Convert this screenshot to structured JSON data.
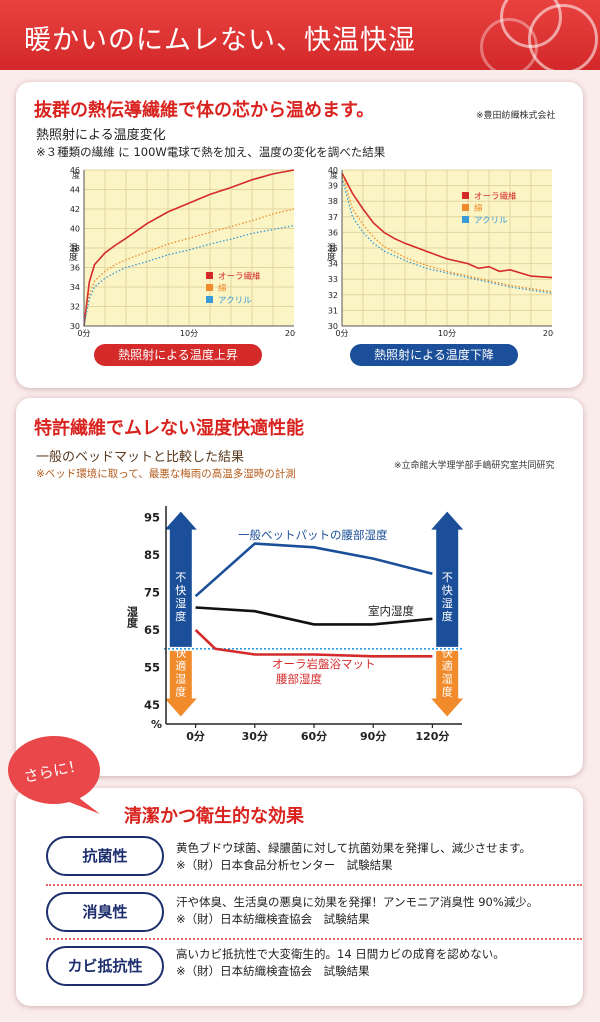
{
  "header": {
    "title": "暖かいのにムレない、快温快湿"
  },
  "section1": {
    "heading": "抜群の熱伝導繊維で体の芯から温めます。",
    "source_note": "※豊田紡織株式会社",
    "subtitle": "熱照射による温度変化",
    "description": "※３種類の繊維 に 100W電球で熱を加え、温度の変化を調べた結果",
    "left_caption": "熱照射による温度上昇",
    "right_caption": "熱照射による温度下降"
  },
  "section2": {
    "heading": "特許繊維でムレない湿度快適性能",
    "subtitle": "一般のベッドマットと比較した結果",
    "source_note": "※立命館大学理学部手嶋研究室共同研究",
    "description": "※ベッド環境に取って、最悪な梅雨の高温多湿時の計測",
    "arrow_up_label": "不快湿度",
    "arrow_down_label": "快適湿度"
  },
  "section3": {
    "bubble_text": "さらに！",
    "heading": "清潔かつ衛生的な効果",
    "items": [
      {
        "badge": "抗菌性",
        "text": "黄色ブドウ球菌、緑膿菌に対して抗菌効果を発揮し、減少させます。",
        "note": "※（財）日本食品分析センター　試験結果"
      },
      {
        "badge": "消臭性",
        "text": "汗や体臭、生活臭の悪臭に効果を発揮！アンモニア消臭性 90%減少。",
        "note": "※（財）日本紡織検査協会　試験結果"
      },
      {
        "badge": "カビ抵抗性",
        "text": "高いカビ抵抗性で大変衛生的。14 日間カビの成育を認めない。",
        "note": "※（財）日本紡織検査協会　試験結果"
      }
    ]
  },
  "colors": {
    "header_red": "#d8282a",
    "aura": "#d42a2a",
    "cotton": "#f08a2a",
    "acrylic": "#3a9ad8",
    "navy": "#1b4f99",
    "ideal": "#2a9ae0"
  },
  "chart_data": [
    {
      "type": "line",
      "title": "熱照射による温度上昇",
      "xlabel": "",
      "ylabel": "温度",
      "xlim": [
        0,
        20
      ],
      "ylim": [
        30,
        46
      ],
      "y_unit": "度",
      "x_ticks": [
        "0分",
        "10分",
        "20分"
      ],
      "y_ticks": [
        30,
        32,
        34,
        36,
        38,
        40,
        42,
        44,
        46
      ],
      "legend": [
        "オーラ繊維",
        "綿",
        "アクリル"
      ],
      "legend_position": "bottom-right",
      "series": [
        {
          "name": "オーラ繊維",
          "style": "solid",
          "x": [
            0,
            0.5,
            1,
            2,
            3,
            4,
            6,
            8,
            10,
            12,
            14,
            16,
            18,
            20
          ],
          "values": [
            30,
            34.5,
            36.3,
            37.5,
            38.3,
            39.0,
            40.5,
            41.7,
            42.6,
            43.5,
            44.2,
            45.0,
            45.6,
            46.0
          ]
        },
        {
          "name": "綿",
          "style": "dotted",
          "x": [
            0,
            0.5,
            1,
            2,
            3,
            4,
            6,
            8,
            10,
            12,
            14,
            16,
            18,
            20
          ],
          "values": [
            30,
            33.2,
            34.6,
            35.6,
            36.3,
            36.8,
            37.6,
            38.4,
            39.0,
            39.6,
            40.2,
            40.8,
            41.5,
            42.0
          ]
        },
        {
          "name": "アクリル",
          "style": "dotted",
          "x": [
            0,
            0.5,
            1,
            2,
            3,
            4,
            6,
            8,
            10,
            12,
            14,
            16,
            18,
            20
          ],
          "values": [
            30,
            32.8,
            34.0,
            34.9,
            35.5,
            36.0,
            36.6,
            37.3,
            37.8,
            38.4,
            38.9,
            39.5,
            39.9,
            40.3
          ]
        }
      ]
    },
    {
      "type": "line",
      "title": "熱照射による温度下降",
      "xlabel": "",
      "ylabel": "温度",
      "xlim": [
        0,
        20
      ],
      "ylim": [
        30,
        40
      ],
      "y_unit": "度",
      "x_ticks": [
        "0分",
        "10分",
        "20分"
      ],
      "y_ticks": [
        30,
        31,
        32,
        33,
        34,
        35,
        36,
        37,
        38,
        39,
        40
      ],
      "legend": [
        "オーラ繊維",
        "綿",
        "アクリル"
      ],
      "legend_position": "top-right",
      "series": [
        {
          "name": "オーラ繊維",
          "style": "solid",
          "x": [
            0,
            1,
            2,
            3,
            4,
            5,
            6,
            8,
            10,
            12,
            13,
            14,
            15,
            16,
            18,
            20
          ],
          "values": [
            39.8,
            38.5,
            37.5,
            36.6,
            36.0,
            35.6,
            35.3,
            34.8,
            34.3,
            34.0,
            33.7,
            33.8,
            33.5,
            33.6,
            33.2,
            33.1
          ]
        },
        {
          "name": "綿",
          "style": "dotted",
          "x": [
            0,
            1,
            2,
            3,
            4,
            6,
            8,
            10,
            12,
            14,
            16,
            18,
            20
          ],
          "values": [
            39.8,
            37.5,
            36.5,
            35.7,
            35.1,
            34.4,
            33.9,
            33.5,
            33.2,
            32.9,
            32.6,
            32.4,
            32.2
          ]
        },
        {
          "name": "アクリル",
          "style": "dotted",
          "x": [
            0,
            1,
            2,
            3,
            4,
            6,
            8,
            10,
            12,
            14,
            16,
            18,
            20
          ],
          "values": [
            39.5,
            37.0,
            36.0,
            35.3,
            34.8,
            34.2,
            33.7,
            33.4,
            33.1,
            32.8,
            32.5,
            32.3,
            32.1
          ]
        }
      ]
    },
    {
      "type": "line",
      "title": "",
      "xlabel": "",
      "ylabel": "湿度",
      "xlim": [
        -15,
        135
      ],
      "ylim": [
        40,
        98
      ],
      "y_unit": "%",
      "x_ticks": [
        "0分",
        "30分",
        "60分",
        "90分",
        "120分"
      ],
      "y_ticks": [
        45,
        55,
        65,
        75,
        85,
        95
      ],
      "threshold": 60,
      "series": [
        {
          "name": "一般ベットパットの腰部湿度",
          "x": [
            0,
            30,
            60,
            90,
            120
          ],
          "values": [
            74,
            88,
            87,
            84,
            80
          ]
        },
        {
          "name": "室内湿度",
          "x": [
            0,
            30,
            60,
            90,
            120
          ],
          "values": [
            71,
            70,
            66.5,
            66.5,
            68
          ]
        },
        {
          "name": "オーラ岩盤浴マット 腰部湿度",
          "x": [
            0,
            10,
            30,
            60,
            90,
            120
          ],
          "values": [
            65,
            60,
            58.5,
            58.5,
            58,
            58
          ]
        }
      ]
    }
  ]
}
